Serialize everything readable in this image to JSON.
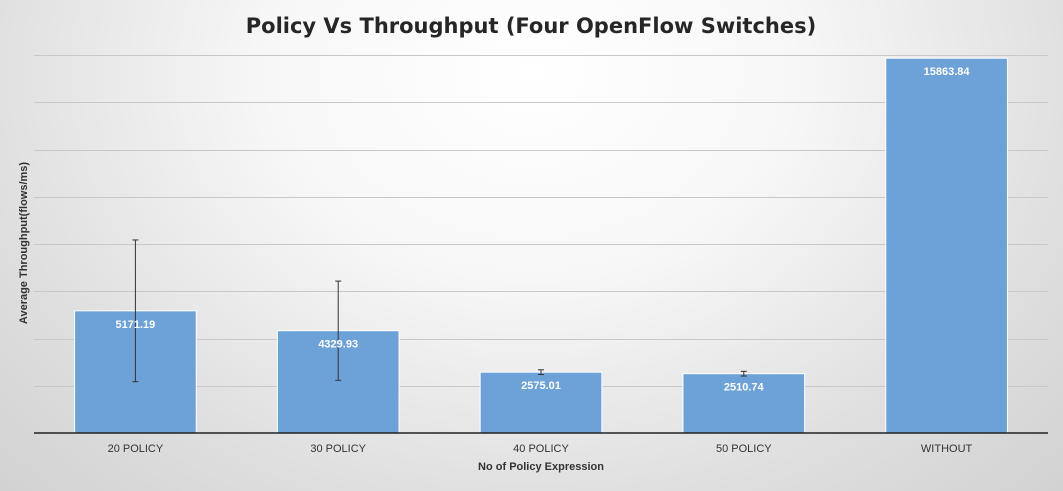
{
  "chart_data": {
    "type": "bar",
    "title": "Policy Vs Throughput (Four OpenFlow Switches)",
    "xlabel": "No of Policy Expression",
    "ylabel": "Average Throughput(flows/ms)",
    "categories": [
      "20 POLICY",
      "30 POLICY",
      "40 POLICY",
      "50 POLICY",
      "WITHOUT"
    ],
    "series": [
      {
        "values": [
          5171.19,
          4329.93,
          2575.01,
          2510.74,
          15863.84
        ],
        "labels": [
          "5171.19",
          "4329.93",
          "2575.01",
          "2510.74",
          "15863.84"
        ],
        "error": [
          3000,
          2100,
          100,
          100,
          0
        ]
      }
    ],
    "ylim": [
      0,
      16000
    ],
    "ytick_step": 2000,
    "y_tick_labels_shown": false,
    "grid": true,
    "legend": "none",
    "colors": {
      "bar": "#6ca2d8",
      "data_label": "#ffffff",
      "grid": "#c8c8c8",
      "axis": "#222222"
    }
  }
}
